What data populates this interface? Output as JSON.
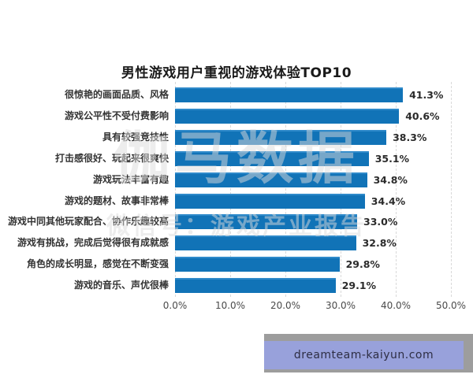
{
  "chart_data": {
    "type": "bar",
    "orientation": "horizontal",
    "title": "男性游戏用户重视的游戏体验TOP10",
    "categories": [
      "很惊艳的画面品质、风格",
      "游戏公平性不受付费影响",
      "具有较强竞技性",
      "打击感很好、玩起来很爽快",
      "游戏玩法丰富有趣",
      "游戏的题材、故事非常棒",
      "游戏中同其他玩家配合、协作乐趣较高",
      "游戏有挑战，完成后觉得很有成就感",
      "角色的成长明显，感觉在不断变强",
      "游戏的音乐、声优很棒"
    ],
    "values": [
      41.3,
      40.6,
      38.3,
      35.1,
      34.8,
      34.4,
      33.0,
      32.8,
      29.8,
      29.1
    ],
    "value_labels": [
      "41.3%",
      "40.6%",
      "38.3%",
      "35.1%",
      "34.8%",
      "34.4%",
      "33.0%",
      "32.8%",
      "29.8%",
      "29.1%"
    ],
    "xlabel": "",
    "ylabel": "",
    "xlim": [
      0,
      50
    ],
    "x_ticks": [
      "0.0%",
      "10.0%",
      "20.0%",
      "30.0%",
      "40.0%",
      "50.0%"
    ],
    "x_tick_values": [
      0,
      10,
      20,
      30,
      40,
      50
    ],
    "grid": "vertical-dashed",
    "legend": "none",
    "bar_color": "#1173b7"
  },
  "watermark": {
    "line1": "伽马数据",
    "line2": "微信号：游戏产业报告"
  },
  "footer_badge": {
    "text": "dreamteam-kaiyun.com",
    "frame_color": "#9d9d9d",
    "fill_color": "#98a1db"
  }
}
